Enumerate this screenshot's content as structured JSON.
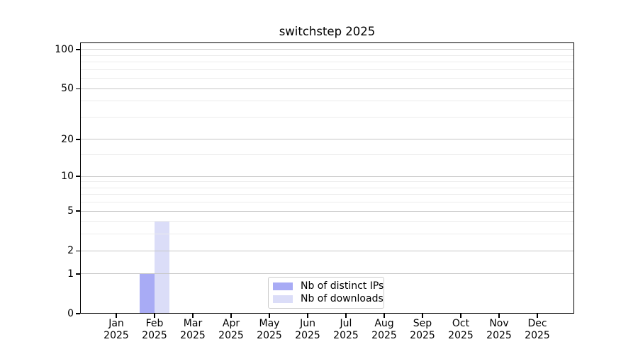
{
  "title": "switchstep 2025",
  "colors": {
    "background": "#ffffff",
    "axis": "#000000",
    "grid_major": "#c6c6c6",
    "grid_minor": "#ececec",
    "legend_border": "#cccccc"
  },
  "chart_data": {
    "type": "bar",
    "title": "switchstep 2025",
    "x_categories": [
      "Jan 2025",
      "Feb 2025",
      "Mar 2025",
      "Apr 2025",
      "May 2025",
      "Jun 2025",
      "Jul 2025",
      "Aug 2025",
      "Sep 2025",
      "Oct 2025",
      "Nov 2025",
      "Dec 2025"
    ],
    "series": [
      {
        "name": "Nb of distinct IPs",
        "color": "#a8abf5",
        "values": [
          0,
          1,
          0,
          0,
          0,
          0,
          0,
          0,
          0,
          0,
          0,
          0
        ]
      },
      {
        "name": "Nb of downloads",
        "color": "#dbddf8",
        "values": [
          0,
          4,
          0,
          0,
          0,
          0,
          0,
          0,
          0,
          0,
          0,
          0
        ]
      }
    ],
    "y_axis": {
      "scale": "log1p",
      "ylim": [
        0,
        113.3
      ],
      "major_ticks": [
        0,
        1,
        2,
        5,
        10,
        20,
        50,
        100
      ],
      "minor_gridlines": [
        3,
        4,
        6,
        7,
        8,
        9,
        15,
        30,
        40,
        60,
        70,
        80,
        90
      ]
    },
    "xlabel": "",
    "ylabel": "",
    "grid": true,
    "legend_position": "lower center"
  }
}
